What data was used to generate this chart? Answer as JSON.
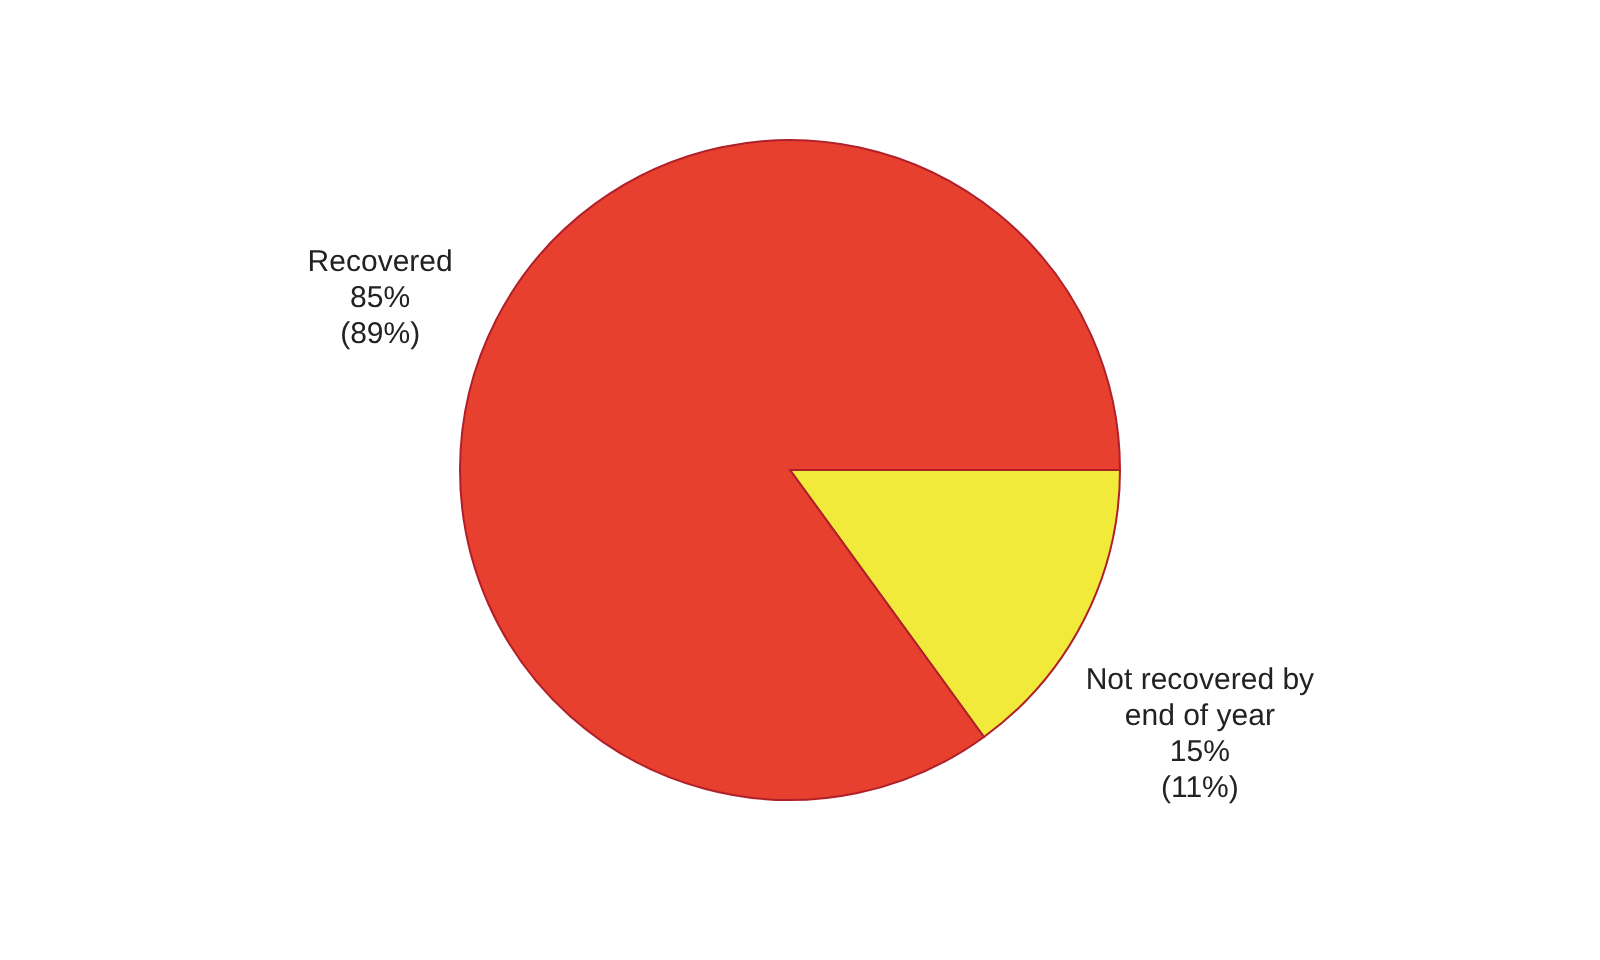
{
  "chart_data": {
    "type": "pie",
    "categories": [
      "Not recovered by end of year",
      "Recovered"
    ],
    "values": [
      15,
      85
    ],
    "colors": [
      "#f2ea3a",
      "#e8402f"
    ],
    "value_labels": [
      "15% (11%)",
      "85% (89%)"
    ]
  }
}
